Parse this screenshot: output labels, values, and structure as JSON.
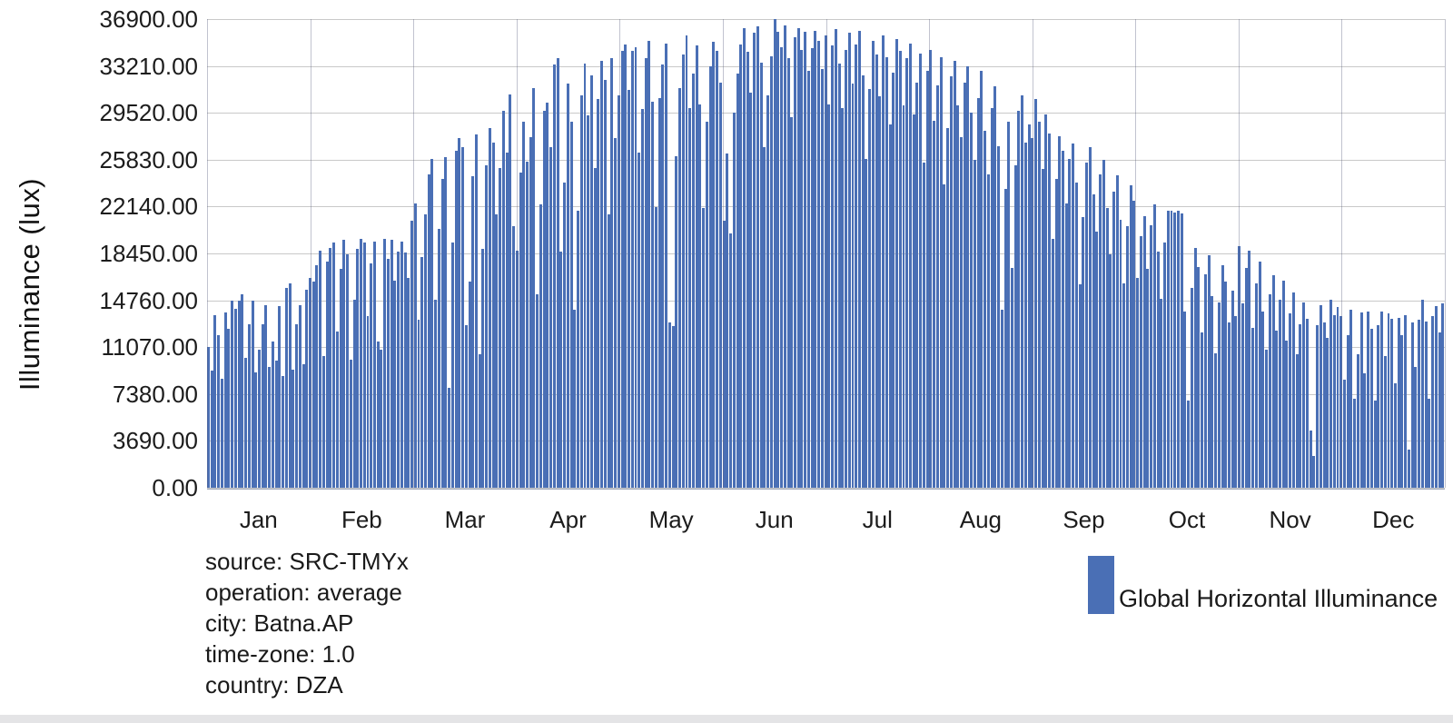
{
  "page": {
    "background": "#ffffff"
  },
  "colors": {
    "bar": "#4a6fb5",
    "gridline": "#c9c9c9",
    "month_divider": "rgba(92,97,128,0.38)",
    "text": "#1f1f1f"
  },
  "chart_data": {
    "type": "bar",
    "title": "",
    "xlabel": "",
    "ylabel": "Illuminance (lux)",
    "ylim": [
      0,
      36900
    ],
    "grid": true,
    "y_ticks": [
      "36900.00",
      "33210.00",
      "29520.00",
      "25830.00",
      "22140.00",
      "18450.00",
      "14760.00",
      "11070.00",
      "7380.00",
      "3690.00",
      "0.00"
    ],
    "categories": [
      "Jan",
      "Feb",
      "Mar",
      "Apr",
      "May",
      "Jun",
      "Jul",
      "Aug",
      "Sep",
      "Oct",
      "Nov",
      "Dec"
    ],
    "legend": {
      "position": "bottom-right",
      "entries": [
        {
          "label": "Global Horizontal Illuminance",
          "color": "#4a6fb5"
        }
      ]
    },
    "annotations": [
      "source: SRC-TMYx",
      "operation: average",
      "city: Batna.AP",
      "time-zone: 1.0",
      "country: DZA"
    ],
    "series": [
      {
        "name": "Global Horizontal Illuminance",
        "unit": "lux",
        "resolution": "daily average",
        "daily_values_by_month": {
          "Jan": [
            11100,
            9200,
            13600,
            12000,
            8600,
            13800,
            12500,
            14700,
            14100,
            14700,
            15200,
            10200,
            12900,
            14700,
            9100,
            10900,
            12900,
            14400,
            9500,
            11500,
            10000,
            14300,
            8800,
            15700,
            16100,
            9300,
            12900,
            14400,
            9700,
            15600,
            16500
          ],
          "Feb": [
            16200,
            17500,
            18700,
            10400,
            17800,
            18900,
            19300,
            12300,
            17200,
            19500,
            18400,
            10100,
            14800,
            18800,
            19600,
            19300,
            13500,
            17700,
            19400,
            11500,
            10900,
            19600,
            18000,
            19500,
            16300,
            18600,
            19400,
            18500
          ],
          "Mar": [
            16500,
            21000,
            22400,
            13200,
            18200,
            21500,
            24700,
            25900,
            14800,
            20400,
            24300,
            26000,
            7900,
            19300,
            26500,
            27500,
            26800,
            12800,
            16200,
            24500,
            27800,
            10500,
            18800,
            25400,
            28300,
            27200,
            21500,
            25200,
            29700,
            26400,
            31000
          ],
          "Apr": [
            20600,
            18700,
            24800,
            28800,
            25700,
            27600,
            31500,
            15200,
            22300,
            29700,
            30300,
            26800,
            33300,
            33800,
            18600,
            24000,
            31800,
            28800,
            14000,
            21800,
            30900,
            33400,
            29300,
            32500,
            25200,
            30600,
            33600,
            32100,
            21500,
            33800
          ],
          "May": [
            27500,
            30900,
            34400,
            34900,
            31300,
            34400,
            34700,
            26400,
            29800,
            33800,
            35200,
            30400,
            22100,
            30700,
            33300,
            35000,
            13000,
            12700,
            26100,
            31500,
            34100,
            35600,
            29900,
            32600,
            34800,
            30200,
            22000,
            28800,
            33200,
            35100,
            34400
          ],
          "Jun": [
            31900,
            21000,
            26300,
            20000,
            29500,
            32600,
            34900,
            36200,
            34300,
            31100,
            35800,
            36300,
            33500,
            26800,
            30900,
            34000,
            36900,
            35900,
            34700,
            36400,
            33800,
            29200,
            35500,
            36200,
            34500,
            35900,
            32800,
            34600,
            36000,
            35200
          ],
          "Jul": [
            33000,
            35600,
            30200,
            34800,
            36100,
            33400,
            29900,
            34500,
            35800,
            31800,
            34900,
            36000,
            32500,
            25900,
            31400,
            35200,
            34100,
            30800,
            35600,
            33900,
            28600,
            32700,
            35300,
            34400,
            30100,
            33800,
            35000,
            29400,
            31900,
            34200,
            25600
          ],
          "Aug": [
            32800,
            34500,
            28900,
            31700,
            33900,
            23900,
            28300,
            32400,
            33600,
            30100,
            27600,
            31900,
            33200,
            29500,
            25800,
            30700,
            32800,
            28100,
            24700,
            29900,
            31600,
            26900,
            14000,
            23500,
            28800,
            17300,
            25400,
            29700,
            30900,
            27200,
            28600
          ],
          "Sep": [
            27500,
            30600,
            28800,
            25100,
            29400,
            27900,
            19600,
            24300,
            27700,
            26500,
            22400,
            25900,
            27100,
            24000,
            16000,
            21300,
            25600,
            26800,
            23100,
            20200,
            24700,
            25800,
            22000,
            18400,
            23300,
            24600,
            21100,
            16100,
            20600,
            23800
          ],
          "Oct": [
            22600,
            16500,
            19800,
            21400,
            17200,
            20700,
            22300,
            18600,
            14900,
            19300,
            21800,
            21800,
            21700,
            21800,
            21600,
            13900,
            6900,
            15700,
            18900,
            17400,
            12200,
            16800,
            18300,
            15100,
            10600,
            14600,
            17500,
            16200,
            13000,
            15500,
            13500
          ],
          "Nov": [
            19000,
            14500,
            17300,
            18700,
            12600,
            16100,
            17800,
            13900,
            10900,
            15200,
            16700,
            12400,
            14800,
            16300,
            11600,
            13700,
            15400,
            10500,
            12900,
            14600,
            13300,
            4500,
            2500,
            12800,
            14400,
            13000,
            11800,
            14800,
            13600,
            14200
          ],
          "Dec": [
            13500,
            8500,
            12000,
            14000,
            7000,
            10500,
            13800,
            9000,
            13900,
            12500,
            6900,
            12800,
            13900,
            10400,
            13700,
            13300,
            8200,
            13400,
            12000,
            13600,
            3000,
            13000,
            9500,
            13200,
            14800,
            13100,
            7000,
            13500,
            14300,
            12200,
            14500
          ]
        }
      }
    ]
  }
}
